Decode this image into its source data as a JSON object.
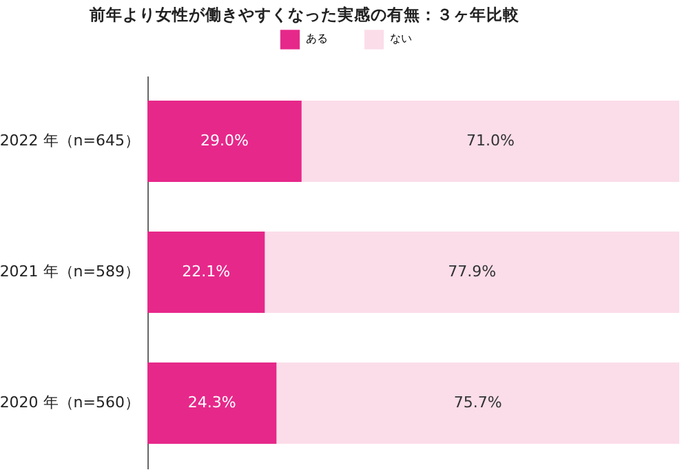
{
  "chart_data": {
    "type": "bar",
    "orientation": "horizontal",
    "stacked": true,
    "title": "前年より女性が働きやすくなった実感の有無：３ヶ年比較",
    "categories": [
      "2022 年（n=645）",
      "2021 年（n=589）",
      "2020 年（n=560）"
    ],
    "series": [
      {
        "name": "ある",
        "color": "#e6288a",
        "values": [
          29.0,
          22.1,
          24.3
        ],
        "value_labels": [
          "29.0%",
          "22.1%",
          "24.3%"
        ]
      },
      {
        "name": "ない",
        "color": "#fbdde9",
        "values": [
          71.0,
          77.9,
          75.7
        ],
        "value_labels": [
          "71.0%",
          "77.9%",
          "75.7%"
        ]
      }
    ],
    "legend": "top"
  }
}
